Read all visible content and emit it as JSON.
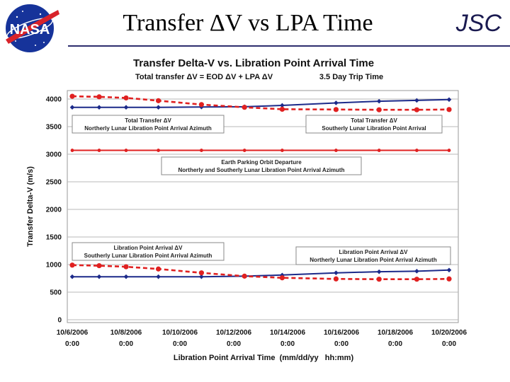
{
  "slide": {
    "title": "Transfer ΔV vs LPA Time",
    "org": "JSC",
    "logo_text": "NASA"
  },
  "chart_data": {
    "type": "line",
    "title": "Transfer Delta-V vs. Libration Point Arrival Time",
    "subtitle": "Total transfer ΔV = EOD ΔV + LPA ΔV",
    "subtitle2": "3.5 Day Trip Time",
    "xlabel": "Libration Point Arrival Time  (mm/dd/yy   hh:mm)",
    "ylabel": "Transfer Delta-V  (m/s)",
    "ylim": [
      0,
      4000
    ],
    "yticks": [
      0,
      500,
      1000,
      1500,
      2000,
      2500,
      3000,
      3500,
      4000
    ],
    "xlim": [
      0,
      14
    ],
    "xticks": [
      {
        "x": 0,
        "date": "10/6/2006",
        "time": "0:00"
      },
      {
        "x": 2,
        "date": "10/8/2006",
        "time": "0:00"
      },
      {
        "x": 4,
        "date": "10/10/2006",
        "time": "0:00"
      },
      {
        "x": 6,
        "date": "10/12/2006",
        "time": "0:00"
      },
      {
        "x": 8,
        "date": "10/14/2006",
        "time": "0:00"
      },
      {
        "x": 10,
        "date": "10/16/2006",
        "time": "0:00"
      },
      {
        "x": 12,
        "date": "10/18/2006",
        "time": "0:00"
      },
      {
        "x": 14,
        "date": "10/20/2006",
        "time": "0:00"
      }
    ],
    "grid": true,
    "series": [
      {
        "name": "",
        "color": "#1c2a8a",
        "style": "solid",
        "marker": "diamond",
        "points": [
          [
            0,
            3850
          ],
          [
            1,
            3850
          ],
          [
            2,
            3850
          ],
          [
            3.2,
            3850
          ],
          [
            4.8,
            3855
          ],
          [
            6.4,
            3860
          ],
          [
            7.8,
            3885
          ],
          [
            9.8,
            3930
          ],
          [
            11.4,
            3960
          ],
          [
            12.8,
            3975
          ],
          [
            14,
            3990
          ]
        ]
      },
      {
        "name": "",
        "color": "#e02020",
        "style": "dashed",
        "marker": "circle",
        "points": [
          [
            0,
            4050
          ],
          [
            1,
            4040
          ],
          [
            2,
            4020
          ],
          [
            3.2,
            3970
          ],
          [
            4.8,
            3900
          ],
          [
            6.4,
            3850
          ],
          [
            7.8,
            3815
          ],
          [
            9.8,
            3810
          ],
          [
            11.4,
            3805
          ],
          [
            12.8,
            3805
          ],
          [
            14,
            3810
          ]
        ]
      },
      {
        "name": "",
        "color": "#e02020",
        "style": "solid",
        "marker": "circle",
        "points": [
          [
            0,
            3070
          ],
          [
            1,
            3070
          ],
          [
            2,
            3070
          ],
          [
            3.2,
            3070
          ],
          [
            4.8,
            3070
          ],
          [
            6.4,
            3070
          ],
          [
            7.8,
            3070
          ],
          [
            9.8,
            3070
          ],
          [
            11.4,
            3070
          ],
          [
            12.8,
            3070
          ],
          [
            14,
            3070
          ]
        ]
      },
      {
        "name": "",
        "color": "#1c2a8a",
        "style": "solid",
        "marker": "diamond",
        "points": [
          [
            0,
            780
          ],
          [
            1,
            780
          ],
          [
            2,
            780
          ],
          [
            3.2,
            780
          ],
          [
            4.8,
            780
          ],
          [
            6.4,
            790
          ],
          [
            7.8,
            810
          ],
          [
            9.8,
            850
          ],
          [
            11.4,
            870
          ],
          [
            12.8,
            880
          ],
          [
            14,
            900
          ]
        ]
      },
      {
        "name": "",
        "color": "#e02020",
        "style": "dashed",
        "marker": "circle",
        "points": [
          [
            0,
            990
          ],
          [
            1,
            980
          ],
          [
            2,
            960
          ],
          [
            3.2,
            920
          ],
          [
            4.8,
            850
          ],
          [
            6.4,
            790
          ],
          [
            7.8,
            760
          ],
          [
            9.8,
            740
          ],
          [
            11.4,
            735
          ],
          [
            12.8,
            735
          ],
          [
            14,
            740
          ]
        ]
      }
    ],
    "annotations": [
      {
        "line1": "Total Transfer ΔV",
        "line2": "Northerly Lunar Libration Point Arrival Azimuth"
      },
      {
        "line1": "Total Transfer ΔV",
        "line2": "Southerly Lunar Libration Point Arrival"
      },
      {
        "line1": "Earth Parking Orbit Departure",
        "line2": "Northerly and Southerly Lunar Libration Point Arrival Azimuth"
      },
      {
        "line1": "Libration Point Arrival ΔV",
        "line2": "Southerly Lunar Libration Point Arrival Azimuth"
      },
      {
        "line1": "Libration Point Arrival ΔV",
        "line2": "Northerly Lunar Libration Point Arrival Azimuth"
      }
    ]
  }
}
